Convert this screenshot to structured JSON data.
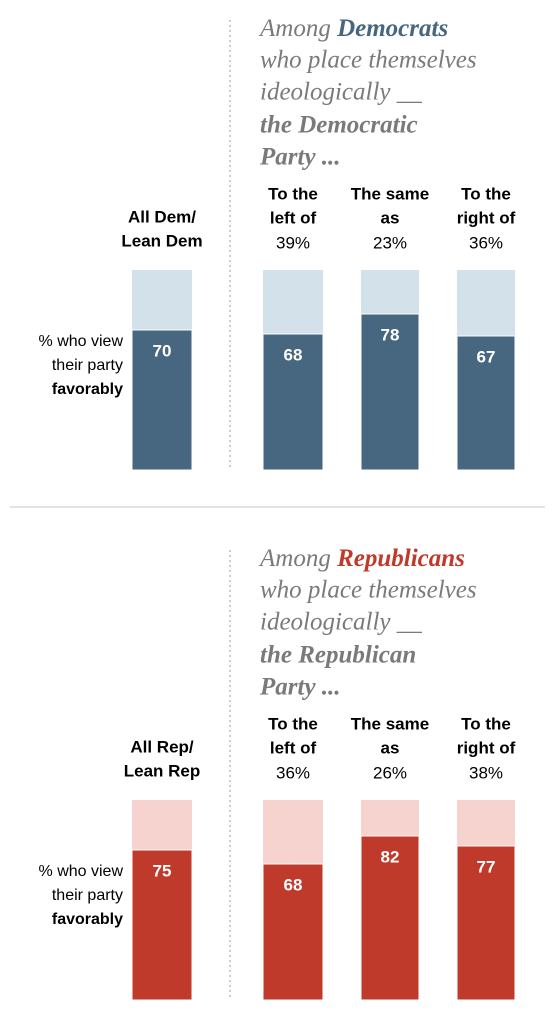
{
  "chart_data": [
    {
      "type": "bar",
      "title": {
        "lead": "Among",
        "group": "Democrats",
        "middle": [
          "who place themselves",
          "ideologically __"
        ],
        "party": [
          "the Democratic",
          "Party ..."
        ]
      },
      "title_color": "#46677f",
      "categories": [
        [
          "All Dem/",
          "Lean Dem"
        ],
        [
          "To the",
          "left of"
        ],
        [
          "The same",
          "as"
        ],
        [
          "To the",
          "right of"
        ]
      ],
      "share_labels": [
        "39%",
        "23%",
        "36%"
      ],
      "y_label": [
        "% who view",
        "their party",
        "favorably"
      ],
      "values": [
        70,
        68,
        78,
        67
      ],
      "color": "#46677f",
      "background_color": "#d3e1ea",
      "ylim": [
        0,
        100
      ]
    },
    {
      "type": "bar",
      "title": {
        "lead": "Among",
        "group": "Republicans",
        "middle": [
          "who place themselves",
          "ideologically __"
        ],
        "party": [
          "the Republican",
          "Party ..."
        ]
      },
      "title_color": "#bf3a2b",
      "categories": [
        [
          "All Rep/",
          "Lean Rep"
        ],
        [
          "To the",
          "left of"
        ],
        [
          "The same",
          "as"
        ],
        [
          "To the",
          "right of"
        ]
      ],
      "share_labels": [
        "36%",
        "26%",
        "38%"
      ],
      "y_label": [
        "% who view",
        "their party",
        "favorably"
      ],
      "values": [
        75,
        68,
        82,
        77
      ],
      "color": "#bf3a2b",
      "background_color": "#f6d3cf",
      "ylim": [
        0,
        100
      ]
    }
  ]
}
